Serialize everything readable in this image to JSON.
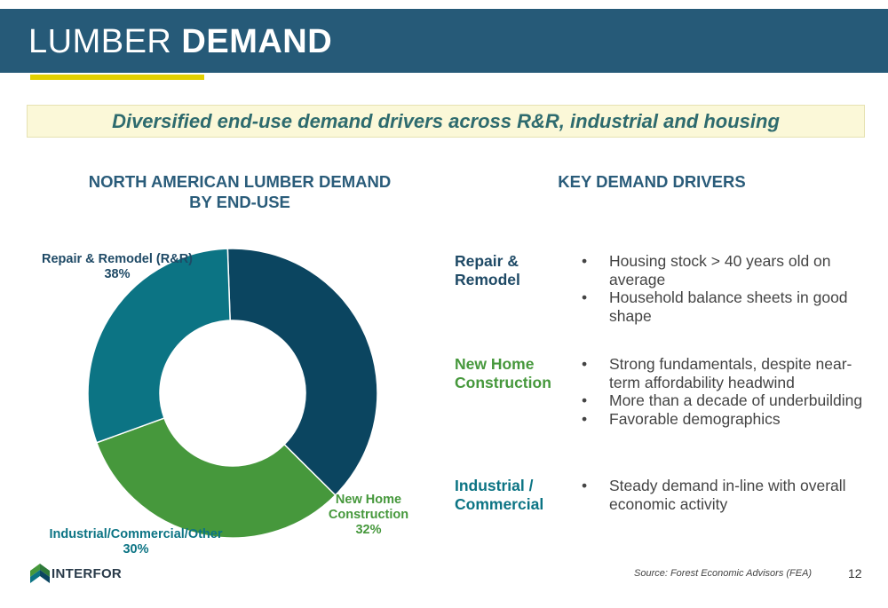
{
  "header": {
    "title_light": "LUMBER ",
    "title_bold": "DEMAND"
  },
  "tagline": "Diversified end-use demand drivers across R&R, industrial and housing",
  "chart_title_line1": "NORTH AMERICAN LUMBER DEMAND",
  "chart_title_line2": "BY END-USE",
  "drivers_title": "KEY DEMAND DRIVERS",
  "chart_data": {
    "type": "pie",
    "donut": true,
    "title": "NORTH AMERICAN LUMBER DEMAND BY END-USE",
    "legend": "none",
    "categories": [
      "Repair & Remodel (R&R)",
      "New Home Construction",
      "Industrial/Commercial/Other"
    ],
    "values": [
      38,
      32,
      30
    ],
    "units": "%",
    "colors": [
      "#0b4560",
      "#46983c",
      "#0c7484"
    ]
  },
  "slice_labels": {
    "rr": {
      "name": "Repair & Remodel (R&R)",
      "pct": "38%"
    },
    "nhc": {
      "name_line1": "New Home",
      "name_line2": "Construction",
      "pct": "32%"
    },
    "ind": {
      "name": "Industrial/Commercial/Other",
      "pct": "30%"
    }
  },
  "drivers": [
    {
      "label_line1": "Repair &",
      "label_line2": "Remodel",
      "color": "#1f4a66",
      "bullets": [
        "Housing stock > 40 years old on average",
        "Household balance sheets in good shape"
      ]
    },
    {
      "label_line1": "New Home",
      "label_line2": "Construction",
      "color": "#46983c",
      "bullets": [
        "Strong fundamentals, despite near-term affordability headwind",
        "More than a decade of underbuilding",
        "Favorable demographics"
      ]
    },
    {
      "label_line1": "Industrial /",
      "label_line2": "Commercial",
      "color": "#0c7484",
      "bullets": [
        "Steady demand in-line with overall economic activity"
      ]
    }
  ],
  "footer": {
    "logo_text": "INTERFOR",
    "source": "Source: Forest Economic Advisors (FEA)",
    "page_number": "12"
  },
  "colors": {
    "header_bg": "#265a78",
    "accent_yellow": "#e3d000",
    "tagline_bg": "#fbf8d8",
    "tagline_text": "#2e6b6e"
  }
}
